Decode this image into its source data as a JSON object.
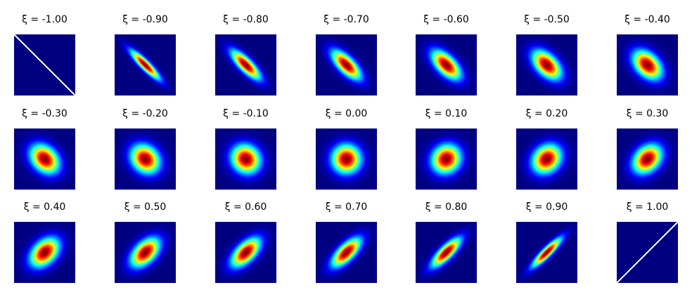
{
  "chart_data": {
    "type": "heatmap",
    "description_free": true,
    "rows": 3,
    "cols": 7,
    "colormap": "jet",
    "background_color": "#00007f",
    "symbol": "ξ",
    "panels": [
      {
        "label": "ξ = -1.00",
        "xi": -1.0
      },
      {
        "label": "ξ = -0.90",
        "xi": -0.9
      },
      {
        "label": "ξ = -0.80",
        "xi": -0.8
      },
      {
        "label": "ξ = -0.70",
        "xi": -0.7
      },
      {
        "label": "ξ = -0.60",
        "xi": -0.6
      },
      {
        "label": "ξ = -0.50",
        "xi": -0.5
      },
      {
        "label": "ξ = -0.40",
        "xi": -0.4
      },
      {
        "label": "ξ = -0.30",
        "xi": -0.3
      },
      {
        "label": "ξ = -0.20",
        "xi": -0.2
      },
      {
        "label": "ξ = -0.10",
        "xi": -0.1
      },
      {
        "label": "ξ = 0.00",
        "xi": 0.0
      },
      {
        "label": "ξ = 0.10",
        "xi": 0.1
      },
      {
        "label": "ξ = 0.20",
        "xi": 0.2
      },
      {
        "label": "ξ = 0.30",
        "xi": 0.3
      },
      {
        "label": "ξ = 0.40",
        "xi": 0.4
      },
      {
        "label": "ξ = 0.50",
        "xi": 0.5
      },
      {
        "label": "ξ = 0.60",
        "xi": 0.6
      },
      {
        "label": "ξ = 0.70",
        "xi": 0.7
      },
      {
        "label": "ξ = 0.80",
        "xi": 0.8
      },
      {
        "label": "ξ = 0.90",
        "xi": 0.9
      },
      {
        "label": "ξ = 1.00",
        "xi": 1.0
      }
    ]
  }
}
